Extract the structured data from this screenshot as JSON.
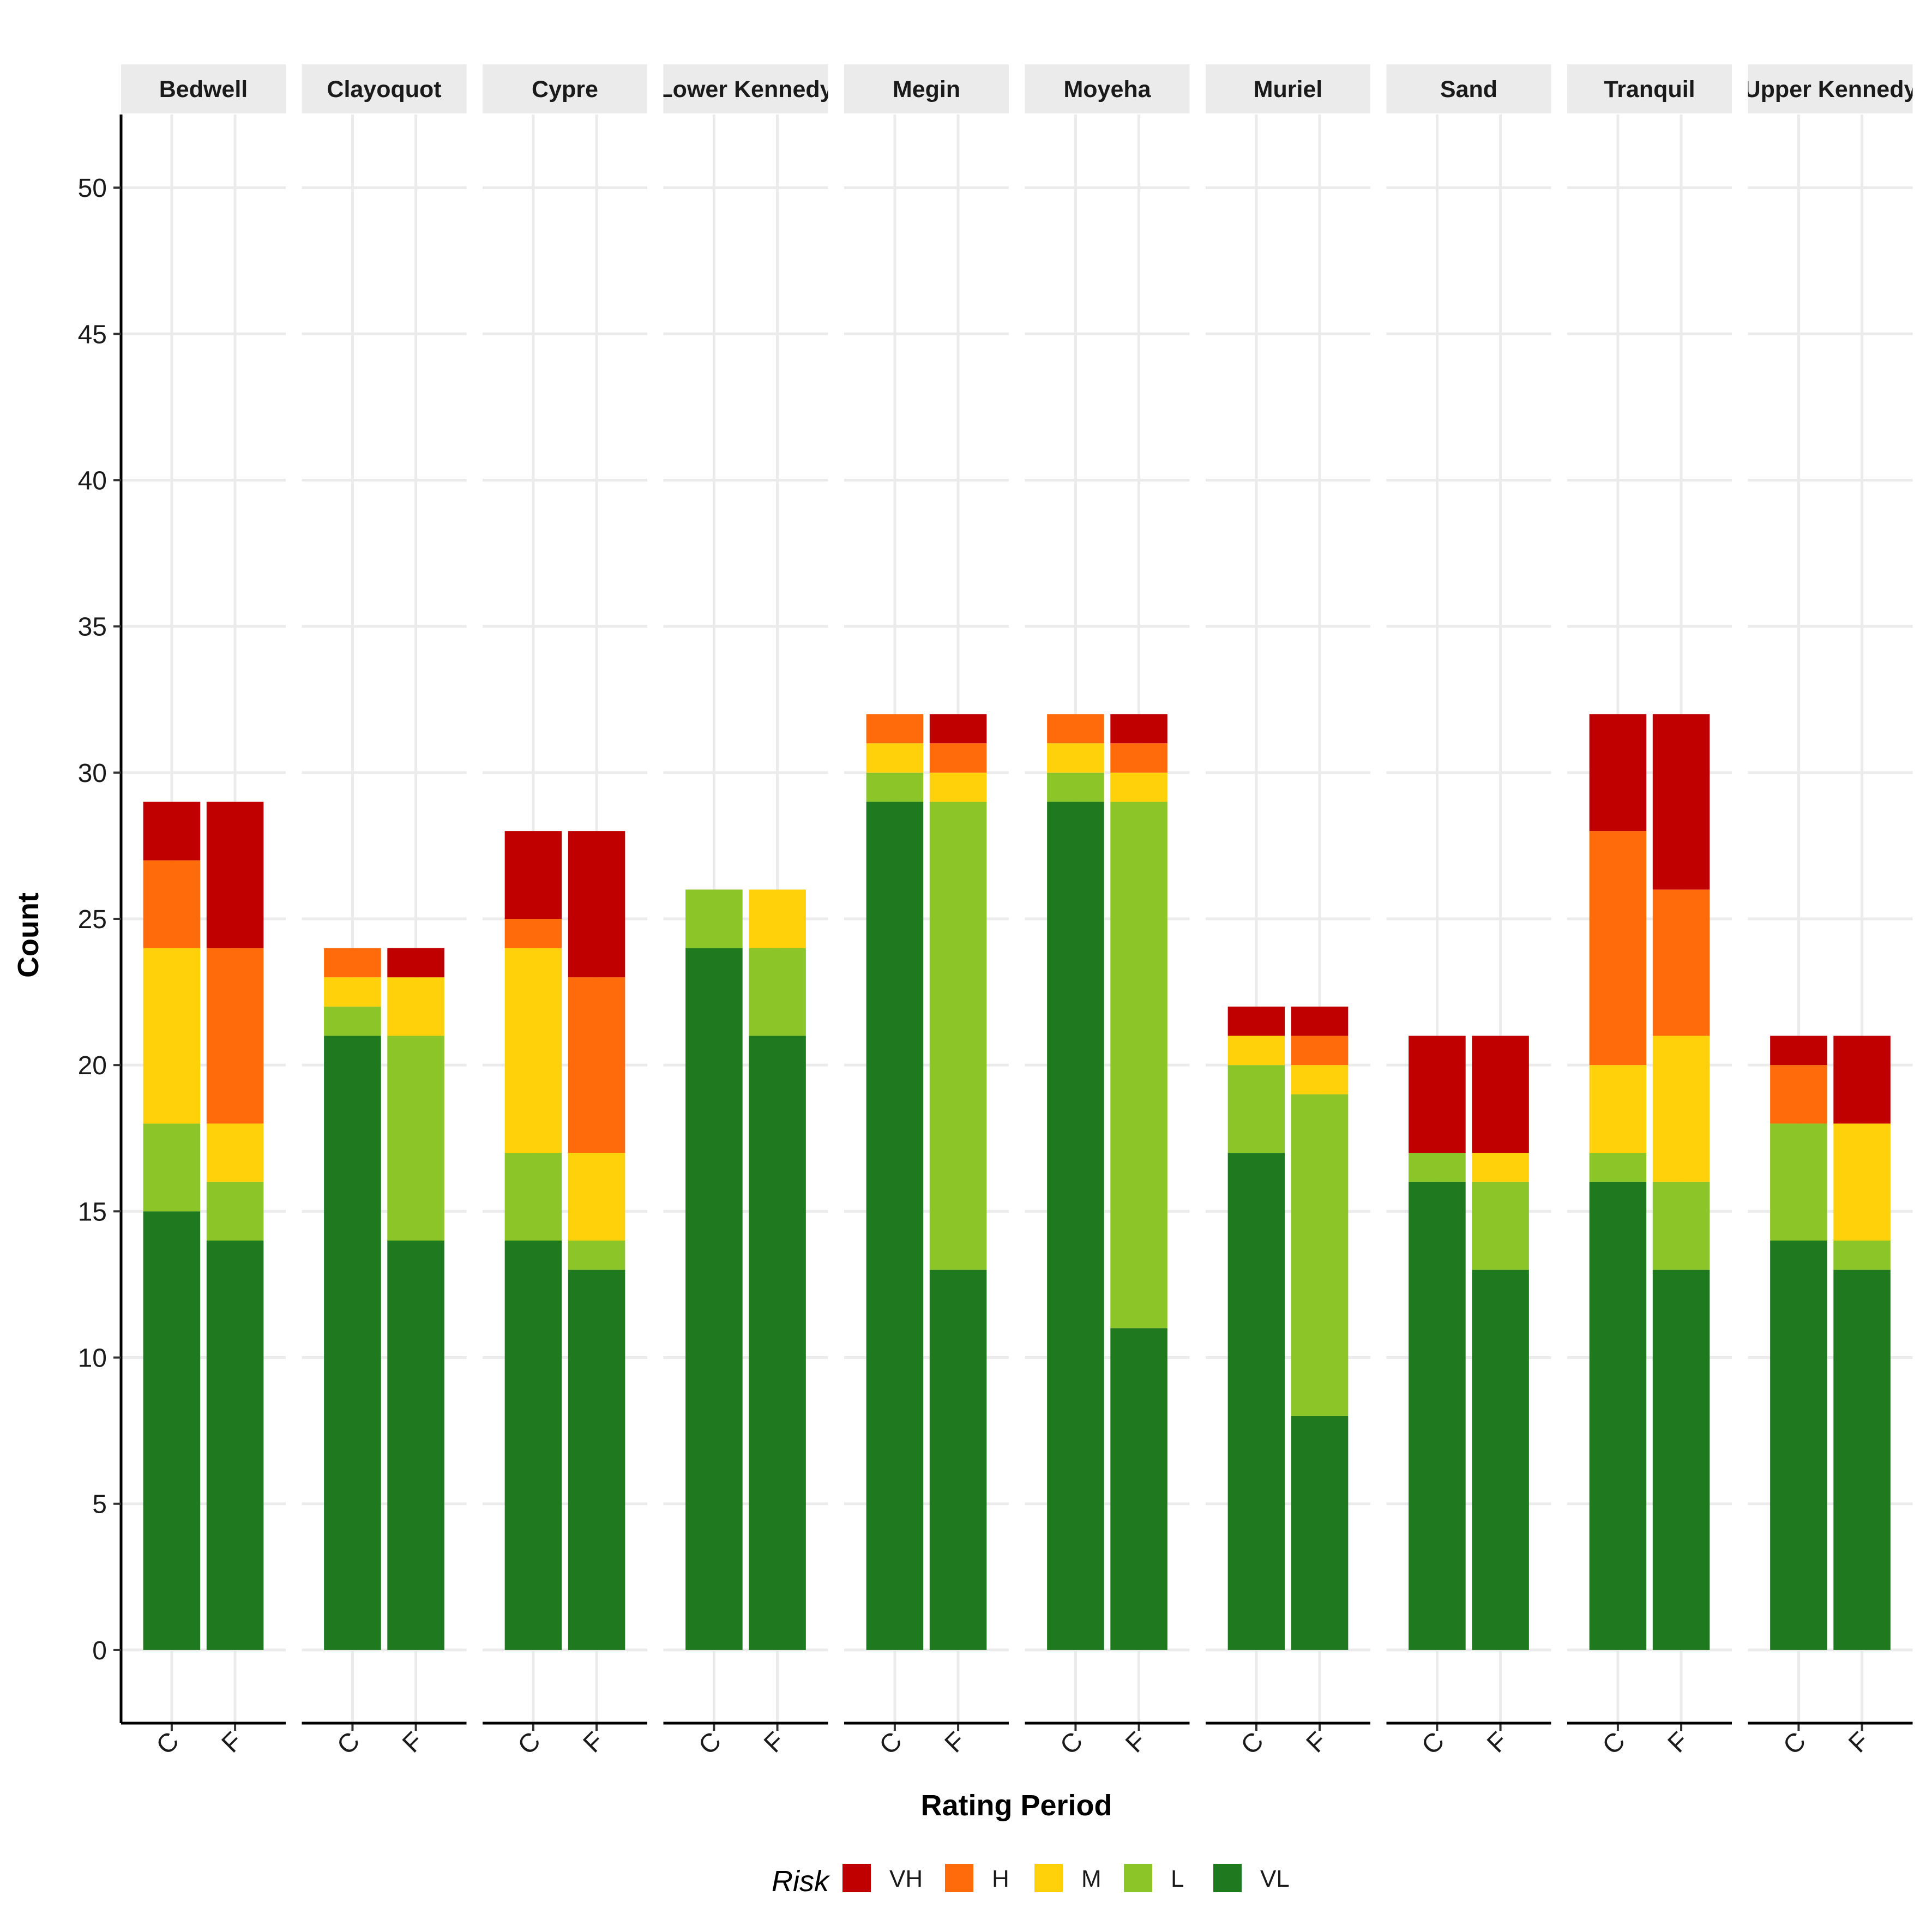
{
  "chart_data": {
    "type": "bar",
    "stacked": true,
    "faceted": true,
    "xlabel": "Rating Period",
    "ylabel": "Count",
    "ylim": [
      -2.5,
      52.5
    ],
    "yticks": [
      0,
      5,
      10,
      15,
      20,
      25,
      30,
      35,
      40,
      45,
      50
    ],
    "grid": true,
    "legend": {
      "title": "Risk",
      "position": "bottom",
      "entries": [
        {
          "key": "VH",
          "color": "#C00000"
        },
        {
          "key": "H",
          "color": "#FF6A0A"
        },
        {
          "key": "M",
          "color": "#FFD10A"
        },
        {
          "key": "L",
          "color": "#8BC527"
        },
        {
          "key": "VL",
          "color": "#1F7A1F"
        }
      ]
    },
    "stack_order_bottom_to_top": [
      "VL",
      "L",
      "M",
      "H",
      "VH"
    ],
    "categories": [
      "C",
      "F"
    ],
    "facets": [
      {
        "name": "Bedwell",
        "bars": [
          {
            "period": "C",
            "VL": 15,
            "L": 3,
            "M": 6,
            "H": 3,
            "VH": 2
          },
          {
            "period": "F",
            "VL": 14,
            "L": 2,
            "M": 2,
            "H": 6,
            "VH": 5
          }
        ]
      },
      {
        "name": "Clayoquot",
        "bars": [
          {
            "period": "C",
            "VL": 21,
            "L": 1,
            "M": 1,
            "H": 1,
            "VH": 0
          },
          {
            "period": "F",
            "VL": 14,
            "L": 7,
            "M": 2,
            "H": 0,
            "VH": 1
          }
        ]
      },
      {
        "name": "Cypre",
        "bars": [
          {
            "period": "C",
            "VL": 14,
            "L": 3,
            "M": 7,
            "H": 1,
            "VH": 3
          },
          {
            "period": "F",
            "VL": 13,
            "L": 1,
            "M": 3,
            "H": 6,
            "VH": 5
          }
        ]
      },
      {
        "name": "Lower Kennedy",
        "bars": [
          {
            "period": "C",
            "VL": 24,
            "L": 2,
            "M": 0,
            "H": 0,
            "VH": 0
          },
          {
            "period": "F",
            "VL": 21,
            "L": 3,
            "M": 2,
            "H": 0,
            "VH": 0
          }
        ]
      },
      {
        "name": "Megin",
        "bars": [
          {
            "period": "C",
            "VL": 29,
            "L": 1,
            "M": 1,
            "H": 1,
            "VH": 0
          },
          {
            "period": "F",
            "VL": 13,
            "L": 16,
            "M": 1,
            "H": 1,
            "VH": 1
          }
        ]
      },
      {
        "name": "Moyeha",
        "bars": [
          {
            "period": "C",
            "VL": 29,
            "L": 1,
            "M": 1,
            "H": 1,
            "VH": 0
          },
          {
            "period": "F",
            "VL": 11,
            "L": 18,
            "M": 1,
            "H": 1,
            "VH": 1
          }
        ]
      },
      {
        "name": "Muriel",
        "bars": [
          {
            "period": "C",
            "VL": 17,
            "L": 3,
            "M": 1,
            "H": 0,
            "VH": 1
          },
          {
            "period": "F",
            "VL": 8,
            "L": 11,
            "M": 1,
            "H": 1,
            "VH": 1
          }
        ]
      },
      {
        "name": "Sand",
        "bars": [
          {
            "period": "C",
            "VL": 16,
            "L": 1,
            "M": 0,
            "H": 0,
            "VH": 4
          },
          {
            "period": "F",
            "VL": 13,
            "L": 3,
            "M": 1,
            "H": 0,
            "VH": 4
          }
        ]
      },
      {
        "name": "Tranquil",
        "bars": [
          {
            "period": "C",
            "VL": 16,
            "L": 1,
            "M": 3,
            "H": 8,
            "VH": 4
          },
          {
            "period": "F",
            "VL": 13,
            "L": 3,
            "M": 5,
            "H": 5,
            "VH": 6
          }
        ]
      },
      {
        "name": "Upper Kennedy",
        "bars": [
          {
            "period": "C",
            "VL": 14,
            "L": 4,
            "M": 0,
            "H": 2,
            "VH": 1
          },
          {
            "period": "F",
            "VL": 13,
            "L": 1,
            "M": 4,
            "H": 0,
            "VH": 3
          }
        ]
      }
    ]
  }
}
